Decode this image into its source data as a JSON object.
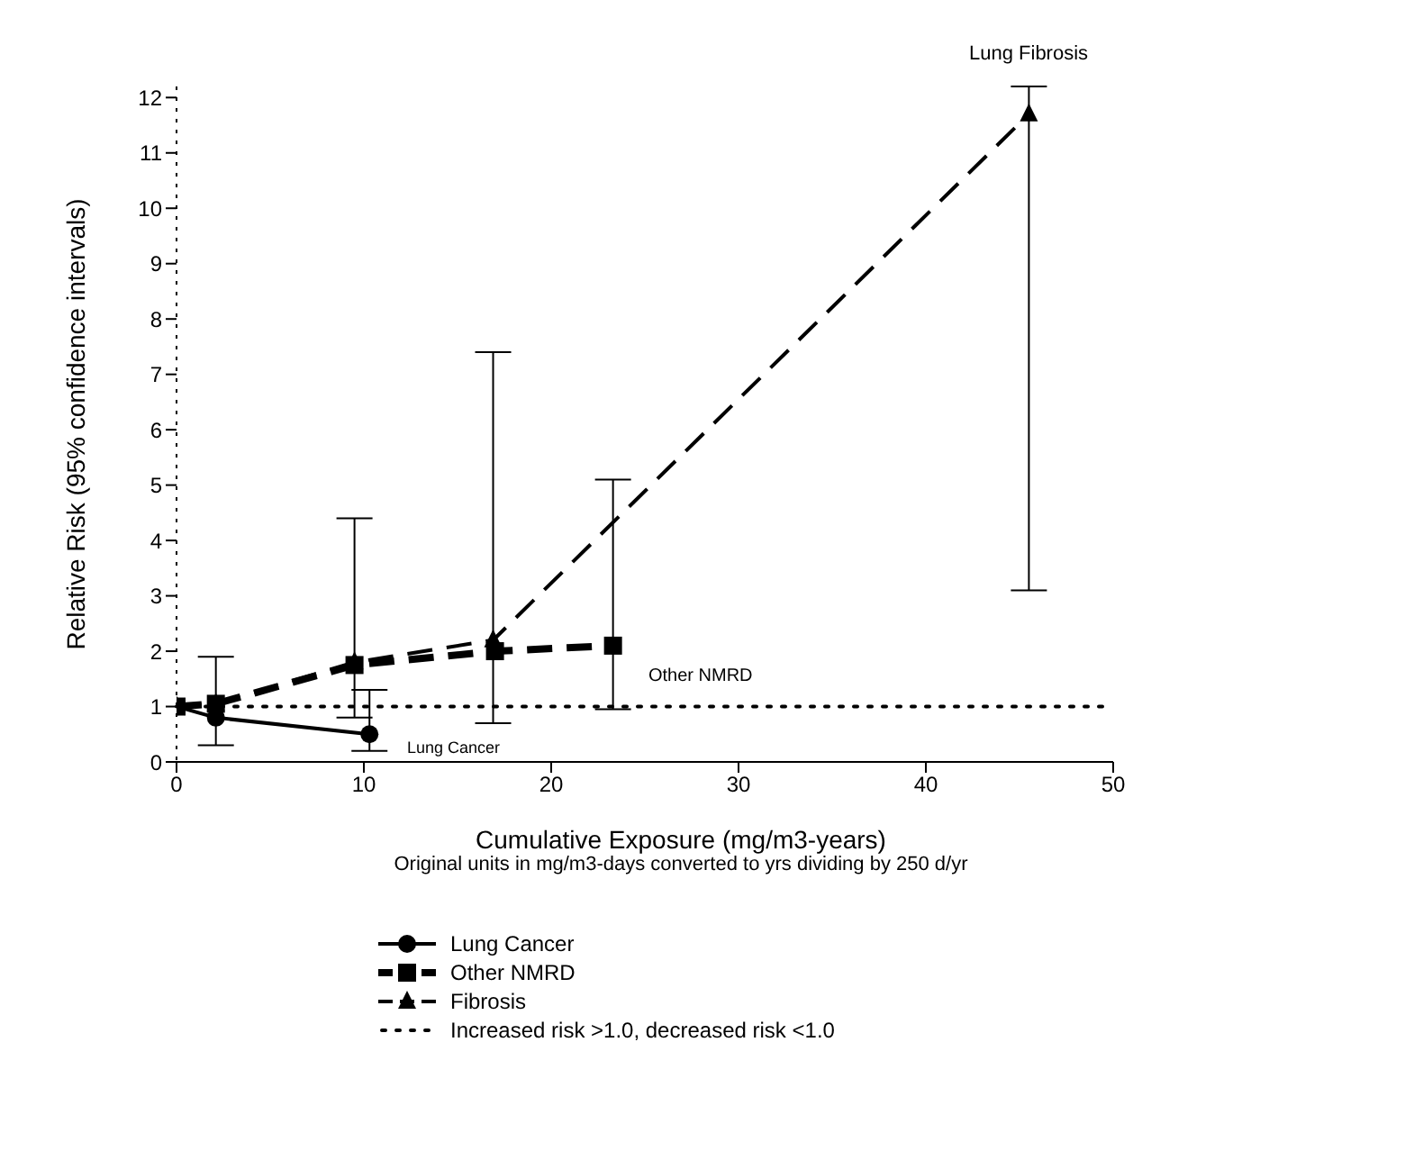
{
  "chart_data": {
    "type": "line",
    "xlabel": "Cumulative Exposure (mg/m3-years)",
    "ylabel": "Relative Risk (95% confidence intervals)",
    "xlim": [
      0,
      50
    ],
    "xticks": [
      0,
      10,
      20,
      30,
      40,
      50
    ],
    "ylim": [
      0,
      12.2
    ],
    "yticks": [
      0,
      1,
      2,
      3,
      4,
      5,
      6,
      7,
      8,
      9,
      10,
      11,
      12
    ],
    "series": [
      {
        "name": "Lung Cancer",
        "color": "#000000",
        "marker": "circle",
        "line_style": "solid",
        "x": [
          0,
          2.1,
          10.3
        ],
        "values": [
          1,
          0.8,
          0.5
        ],
        "errors": [
          null,
          [
            0.3,
            1.9
          ],
          [
            0.2,
            1.3
          ]
        ]
      },
      {
        "name": "Other NMRD",
        "color": "#000000",
        "marker": "square",
        "line_style": "dashed",
        "x": [
          0,
          2.1,
          9.5,
          17,
          23.3
        ],
        "values": [
          1,
          1.05,
          1.75,
          2.0,
          2.1
        ],
        "errors": [
          null,
          null,
          [
            0.8,
            4.4
          ],
          null,
          [
            0.95,
            5.1
          ]
        ]
      },
      {
        "name": "Fibrosis",
        "color": "#000000",
        "marker": "triangle",
        "line_style": "dashed",
        "x": [
          0,
          2.1,
          9.5,
          16.9,
          45.5
        ],
        "values": [
          1,
          1.05,
          1.8,
          2.2,
          11.7
        ],
        "errors": [
          null,
          null,
          null,
          [
            0.7,
            7.4
          ],
          [
            3.1,
            12.2
          ]
        ]
      }
    ],
    "ref_lines": [
      {
        "axis": "y",
        "value": 1,
        "label": "Increased risk >1.0, decreased risk <1.0",
        "line_style": "dotted",
        "color": "#000000"
      }
    ],
    "annotations": [
      "Lung Fibrosis",
      "Other NMRD",
      "Lung Cancer",
      "Original units in mg/m3-days converted to yrs dividing by 250 d/yr"
    ],
    "legend": "bottom"
  }
}
